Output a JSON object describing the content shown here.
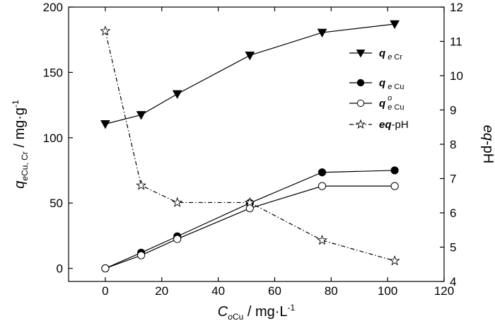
{
  "chart_data": {
    "type": "line",
    "x_axis": {
      "label_main": "C",
      "label_sub": "o",
      "label_sub2": "Cu",
      "label_unit": " / mg·L",
      "label_sup": "-1",
      "range": [
        -13,
        120
      ],
      "ticks": [
        0,
        20,
        40,
        60,
        80,
        100,
        120
      ]
    },
    "y_left": {
      "label_main": "q",
      "label_sub": "e",
      "label_sub2": "Cu, Cr",
      "label_unit": " / mg·g",
      "label_sup": "-1",
      "range": [
        -10,
        200
      ],
      "ticks": [
        0,
        50,
        100,
        150,
        200
      ]
    },
    "y_right": {
      "label_main": "eq",
      "label_rest": "-pH",
      "range": [
        4,
        12
      ],
      "ticks": [
        4,
        5,
        6,
        7,
        8,
        9,
        10,
        11,
        12
      ]
    },
    "series": [
      {
        "key": "qeCr",
        "axis": "left",
        "marker": "triangle-down-filled",
        "dash": "",
        "x": [
          0,
          12.7,
          25.5,
          51.2,
          76.8,
          102.5
        ],
        "y": [
          110.5,
          117.5,
          133.5,
          163,
          180.5,
          187
        ]
      },
      {
        "key": "qeCu",
        "axis": "left",
        "marker": "circle-filled",
        "dash": "",
        "x": [
          0,
          12.7,
          25.5,
          51.2,
          76.8,
          102.5
        ],
        "y": [
          0,
          12,
          24.5,
          50,
          73.5,
          75
        ]
      },
      {
        "key": "qoeCu",
        "axis": "left",
        "marker": "circle-open",
        "dash": "",
        "x": [
          0,
          12.7,
          25.5,
          51.2,
          76.8,
          102.5
        ],
        "y": [
          0,
          10,
          22.5,
          46,
          63,
          63
        ]
      },
      {
        "key": "eqpH",
        "axis": "right",
        "marker": "star-open",
        "dash": "6,3,1.5,3",
        "x": [
          0,
          12.7,
          25.5,
          51.2,
          76.8,
          102.5
        ],
        "y": [
          11.3,
          6.8,
          6.3,
          6.3,
          5.2,
          4.6
        ]
      }
    ],
    "legend": {
      "placement": "top-right",
      "entries": [
        {
          "key": "qeCr",
          "main": "q",
          "sub": "e",
          "sub2": "Cr",
          "sup": ""
        },
        {
          "key": "qeCu",
          "main": "q",
          "sub": "e",
          "sub2": "Cu",
          "sup": ""
        },
        {
          "key": "qoeCu",
          "main": "q",
          "sub": "e",
          "sub2": "Cu",
          "sup": "o"
        },
        {
          "key": "eqpH",
          "main": "eq",
          "sub": "",
          "sub2": "",
          "sup": "",
          "rest": "-pH"
        }
      ]
    },
    "grid": false
  }
}
